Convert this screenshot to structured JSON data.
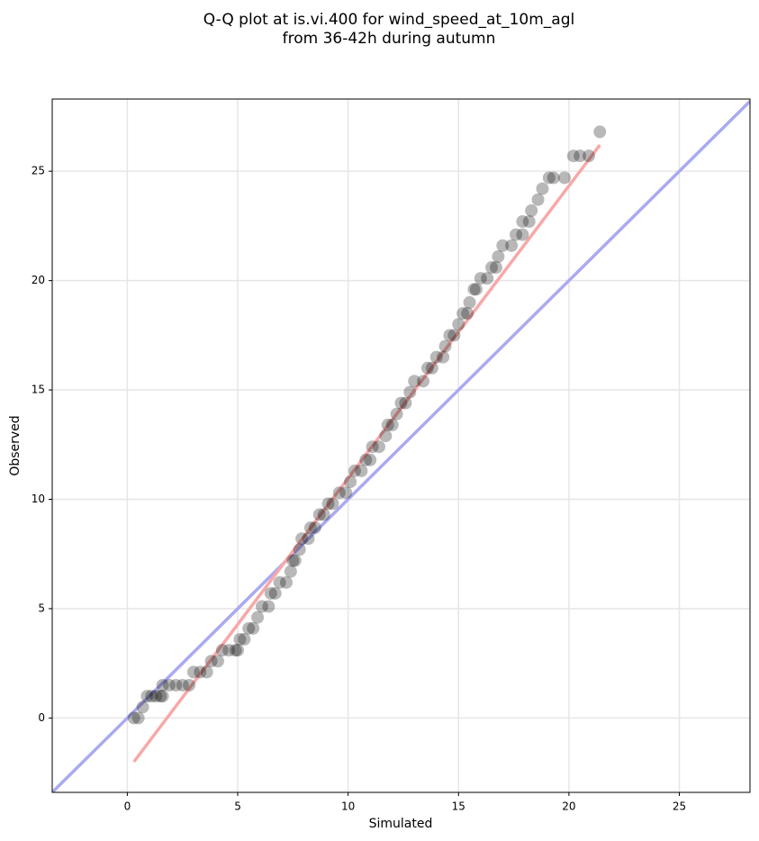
{
  "chart_data": {
    "type": "scatter",
    "title": [
      "Q-Q plot at is.vi.400 for wind_speed_at_10m_agl",
      "from 36-42h during autumn"
    ],
    "x_label": "Simulated",
    "y_label": "Observed",
    "xlim": [
      -3.4,
      28.2
    ],
    "ylim": [
      -3.4,
      28.3
    ],
    "xticks": [
      0,
      5,
      10,
      15,
      20,
      25
    ],
    "yticks": [
      0,
      5,
      10,
      15,
      20,
      25
    ],
    "grid": true,
    "color": "#000000",
    "x": [
      0.3,
      0.5,
      0.7,
      0.9,
      1.1,
      1.3,
      1.5,
      1.6,
      1.6,
      1.9,
      2.2,
      2.5,
      2.8,
      3.0,
      3.3,
      3.6,
      3.8,
      4.1,
      4.3,
      4.6,
      4.9,
      5.0,
      5.1,
      5.3,
      5.5,
      5.7,
      5.9,
      6.1,
      6.4,
      6.5,
      6.7,
      6.9,
      7.2,
      7.4,
      7.5,
      7.6,
      7.8,
      7.9,
      8.2,
      8.3,
      8.5,
      8.7,
      8.9,
      9.1,
      9.3,
      9.6,
      9.9,
      10.1,
      10.3,
      10.6,
      10.8,
      11.0,
      11.1,
      11.4,
      11.7,
      11.8,
      12.0,
      12.2,
      12.4,
      12.6,
      12.8,
      13.0,
      13.4,
      13.6,
      13.8,
      14.0,
      14.3,
      14.4,
      14.6,
      14.8,
      15.0,
      15.2,
      15.4,
      15.5,
      15.7,
      15.8,
      16.0,
      16.3,
      16.5,
      16.7,
      16.8,
      17.0,
      17.4,
      17.6,
      17.9,
      17.9,
      18.2,
      18.3,
      18.6,
      18.8,
      19.1,
      19.3,
      19.8,
      20.2,
      20.5,
      20.9,
      21.4
    ],
    "values": [
      0,
      0,
      0.5,
      1.0,
      1.0,
      1.0,
      1.0,
      1.0,
      1.5,
      1.5,
      1.5,
      1.5,
      1.5,
      2.1,
      2.1,
      2.1,
      2.6,
      2.6,
      3.1,
      3.1,
      3.1,
      3.1,
      3.6,
      3.6,
      4.1,
      4.1,
      4.6,
      5.1,
      5.1,
      5.7,
      5.7,
      6.2,
      6.2,
      6.7,
      7.2,
      7.2,
      7.7,
      8.2,
      8.2,
      8.7,
      8.7,
      9.3,
      9.3,
      9.8,
      9.8,
      10.3,
      10.3,
      10.8,
      11.3,
      11.3,
      11.8,
      11.8,
      12.4,
      12.4,
      12.9,
      13.4,
      13.4,
      13.9,
      14.4,
      14.4,
      14.9,
      15.4,
      15.4,
      16.0,
      16.0,
      16.5,
      16.5,
      17.0,
      17.5,
      17.5,
      18.0,
      18.5,
      18.5,
      19.0,
      19.6,
      19.6,
      20.1,
      20.1,
      20.6,
      20.6,
      21.1,
      21.6,
      21.6,
      22.1,
      22.1,
      22.7,
      22.7,
      23.2,
      23.7,
      24.2,
      24.7,
      24.7,
      24.7,
      25.7,
      25.7,
      25.7,
      26.8
    ],
    "lines": [
      {
        "color": "#aaaaf0",
        "x": [
          -3.4,
          28.2
        ],
        "values": [
          -3.4,
          28.2
        ]
      },
      {
        "color": "#f7a8a8",
        "x": [
          0.3,
          21.4
        ],
        "values": [
          -2.0,
          26.2
        ]
      }
    ]
  }
}
